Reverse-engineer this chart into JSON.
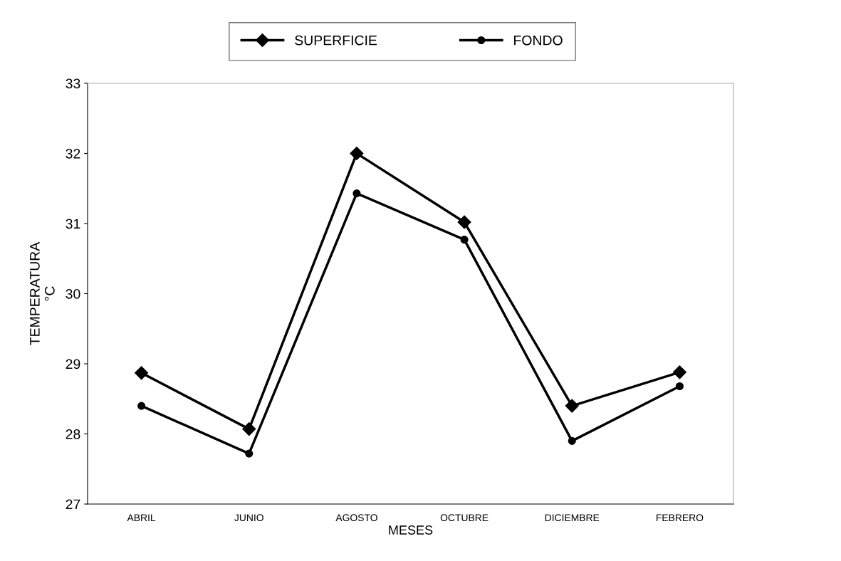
{
  "chart_data": {
    "type": "line",
    "xlabel": "MESES",
    "ylabel": "TEMPERATURA\n°C",
    "categories": [
      "ABRIL",
      "JUNIO",
      "AGOSTO",
      "OCTUBRE",
      "DICIEMBRE",
      "FEBRERO"
    ],
    "series": [
      {
        "name": "SUPERFICIE",
        "color": "#000000",
        "marker": "diamond",
        "values": [
          28.87,
          28.07,
          32.0,
          31.02,
          28.4,
          28.88
        ]
      },
      {
        "name": "FONDO",
        "color": "#000000",
        "marker": "circle",
        "values": [
          28.4,
          27.72,
          31.43,
          30.77,
          27.9,
          28.68
        ]
      }
    ],
    "ylim": [
      27,
      33
    ],
    "yticks": [
      27,
      28,
      29,
      30,
      31,
      32,
      33
    ],
    "grid": false,
    "legend": "top",
    "line_style": "solid"
  }
}
